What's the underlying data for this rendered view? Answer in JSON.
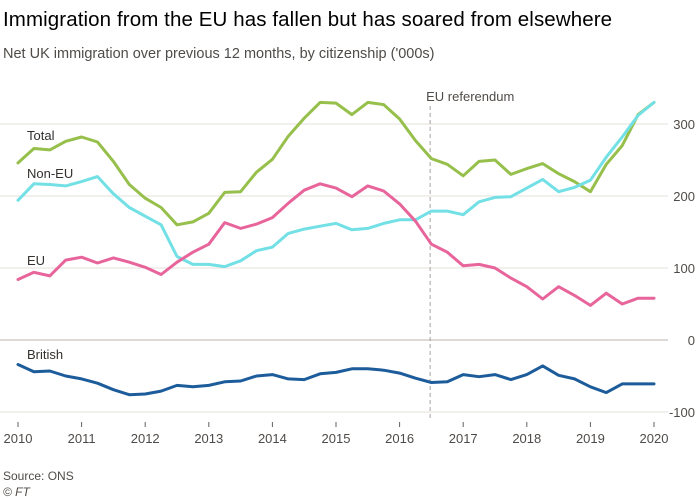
{
  "header": {
    "title": "Immigration from the EU has fallen but has soared from elsewhere",
    "subtitle": "Net UK immigration over previous 12 months, by citizenship ('000s)"
  },
  "footer": {
    "source": "Source: ONS",
    "copyright": "© FT"
  },
  "colors": {
    "background": "#ffffff",
    "gridline": "#e6e0db",
    "zero_line": "#c7c2be",
    "axis_text": "#4f4b48",
    "reference_line": "#a6a19d"
  },
  "chart_data": {
    "type": "line",
    "title": "Immigration from the EU has fallen but has soared from elsewhere",
    "subtitle": "Net UK immigration over previous 12 months, by citizenship ('000s)",
    "xlim": [
      2010,
      2020
    ],
    "ylim": [
      -100,
      330
    ],
    "x_ticks": [
      2010,
      2011,
      2012,
      2013,
      2014,
      2015,
      2016,
      2017,
      2018,
      2019,
      2020
    ],
    "y_ticks": [
      -100,
      0,
      100,
      200,
      300
    ],
    "grid": true,
    "legend": "inline labels near line starts",
    "annotations": [
      {
        "label": "EU referendum",
        "x": 2016.48
      }
    ],
    "series": [
      {
        "name": "Total",
        "color": "#96bf4b",
        "x": [
          2010.0,
          2010.25,
          2010.5,
          2010.75,
          2011.0,
          2011.25,
          2011.5,
          2011.75,
          2012.0,
          2012.25,
          2012.5,
          2012.75,
          2013.0,
          2013.25,
          2013.5,
          2013.75,
          2014.0,
          2014.25,
          2014.5,
          2014.75,
          2015.0,
          2015.25,
          2015.5,
          2015.75,
          2016.0,
          2016.25,
          2016.5,
          2016.75,
          2017.0,
          2017.25,
          2017.5,
          2017.75,
          2018.0,
          2018.25,
          2018.5,
          2018.75,
          2019.0,
          2019.25,
          2019.5,
          2019.75,
          2020.0
        ],
        "values": [
          246,
          266,
          264,
          276,
          282,
          275,
          248,
          216,
          197,
          184,
          160,
          164,
          176,
          205,
          206,
          233,
          251,
          283,
          308,
          330,
          329,
          313,
          330,
          327,
          307,
          277,
          252,
          244,
          228,
          248,
          250,
          230,
          238,
          245,
          231,
          220,
          206,
          244,
          270,
          313,
          330
        ]
      },
      {
        "name": "Non-EU",
        "color": "#72e0e5",
        "x": [
          2010.0,
          2010.25,
          2010.5,
          2010.75,
          2011.0,
          2011.25,
          2011.5,
          2011.75,
          2012.0,
          2012.25,
          2012.5,
          2012.75,
          2013.0,
          2013.25,
          2013.5,
          2013.75,
          2014.0,
          2014.25,
          2014.5,
          2014.75,
          2015.0,
          2015.25,
          2015.5,
          2015.75,
          2016.0,
          2016.25,
          2016.5,
          2016.75,
          2017.0,
          2017.25,
          2017.5,
          2017.75,
          2018.0,
          2018.25,
          2018.5,
          2018.75,
          2019.0,
          2019.25,
          2019.5,
          2019.75,
          2020.0
        ],
        "values": [
          194,
          217,
          216,
          214,
          220,
          227,
          203,
          184,
          172,
          160,
          116,
          105,
          105,
          102,
          110,
          124,
          129,
          148,
          154,
          158,
          162,
          153,
          155,
          162,
          167,
          167,
          179,
          179,
          174,
          192,
          198,
          199,
          211,
          223,
          206,
          212,
          222,
          254,
          282,
          312,
          330
        ]
      },
      {
        "name": "EU",
        "color": "#e7659b",
        "x": [
          2010.0,
          2010.25,
          2010.5,
          2010.75,
          2011.0,
          2011.25,
          2011.5,
          2011.75,
          2012.0,
          2012.25,
          2012.5,
          2012.75,
          2013.0,
          2013.25,
          2013.5,
          2013.75,
          2014.0,
          2014.25,
          2014.5,
          2014.75,
          2015.0,
          2015.25,
          2015.5,
          2015.75,
          2016.0,
          2016.25,
          2016.5,
          2016.75,
          2017.0,
          2017.25,
          2017.5,
          2017.75,
          2018.0,
          2018.25,
          2018.5,
          2018.75,
          2019.0,
          2019.25,
          2019.5,
          2019.75,
          2020.0
        ],
        "values": [
          84,
          94,
          89,
          111,
          115,
          107,
          114,
          108,
          101,
          91,
          108,
          122,
          133,
          163,
          155,
          161,
          170,
          190,
          208,
          217,
          211,
          199,
          214,
          207,
          189,
          165,
          133,
          122,
          103,
          105,
          100,
          86,
          74,
          57,
          74,
          62,
          48,
          65,
          50,
          58,
          58
        ]
      },
      {
        "name": "British",
        "color": "#1d5c9b",
        "x": [
          2010.0,
          2010.25,
          2010.5,
          2010.75,
          2011.0,
          2011.25,
          2011.5,
          2011.75,
          2012.0,
          2012.25,
          2012.5,
          2012.75,
          2013.0,
          2013.25,
          2013.5,
          2013.75,
          2014.0,
          2014.25,
          2014.5,
          2014.75,
          2015.0,
          2015.25,
          2015.5,
          2015.75,
          2016.0,
          2016.25,
          2016.5,
          2016.75,
          2017.0,
          2017.25,
          2017.5,
          2017.75,
          2018.0,
          2018.25,
          2018.5,
          2018.75,
          2019.0,
          2019.25,
          2019.5,
          2019.75,
          2020.0
        ],
        "values": [
          -34,
          -44,
          -43,
          -50,
          -54,
          -60,
          -69,
          -76,
          -75,
          -71,
          -63,
          -65,
          -63,
          -58,
          -57,
          -50,
          -48,
          -54,
          -55,
          -47,
          -45,
          -40,
          -40,
          -42,
          -46,
          -53,
          -59,
          -58,
          -48,
          -51,
          -48,
          -55,
          -48,
          -36,
          -49,
          -54,
          -65,
          -73,
          -61,
          -61,
          -61
        ]
      }
    ]
  }
}
